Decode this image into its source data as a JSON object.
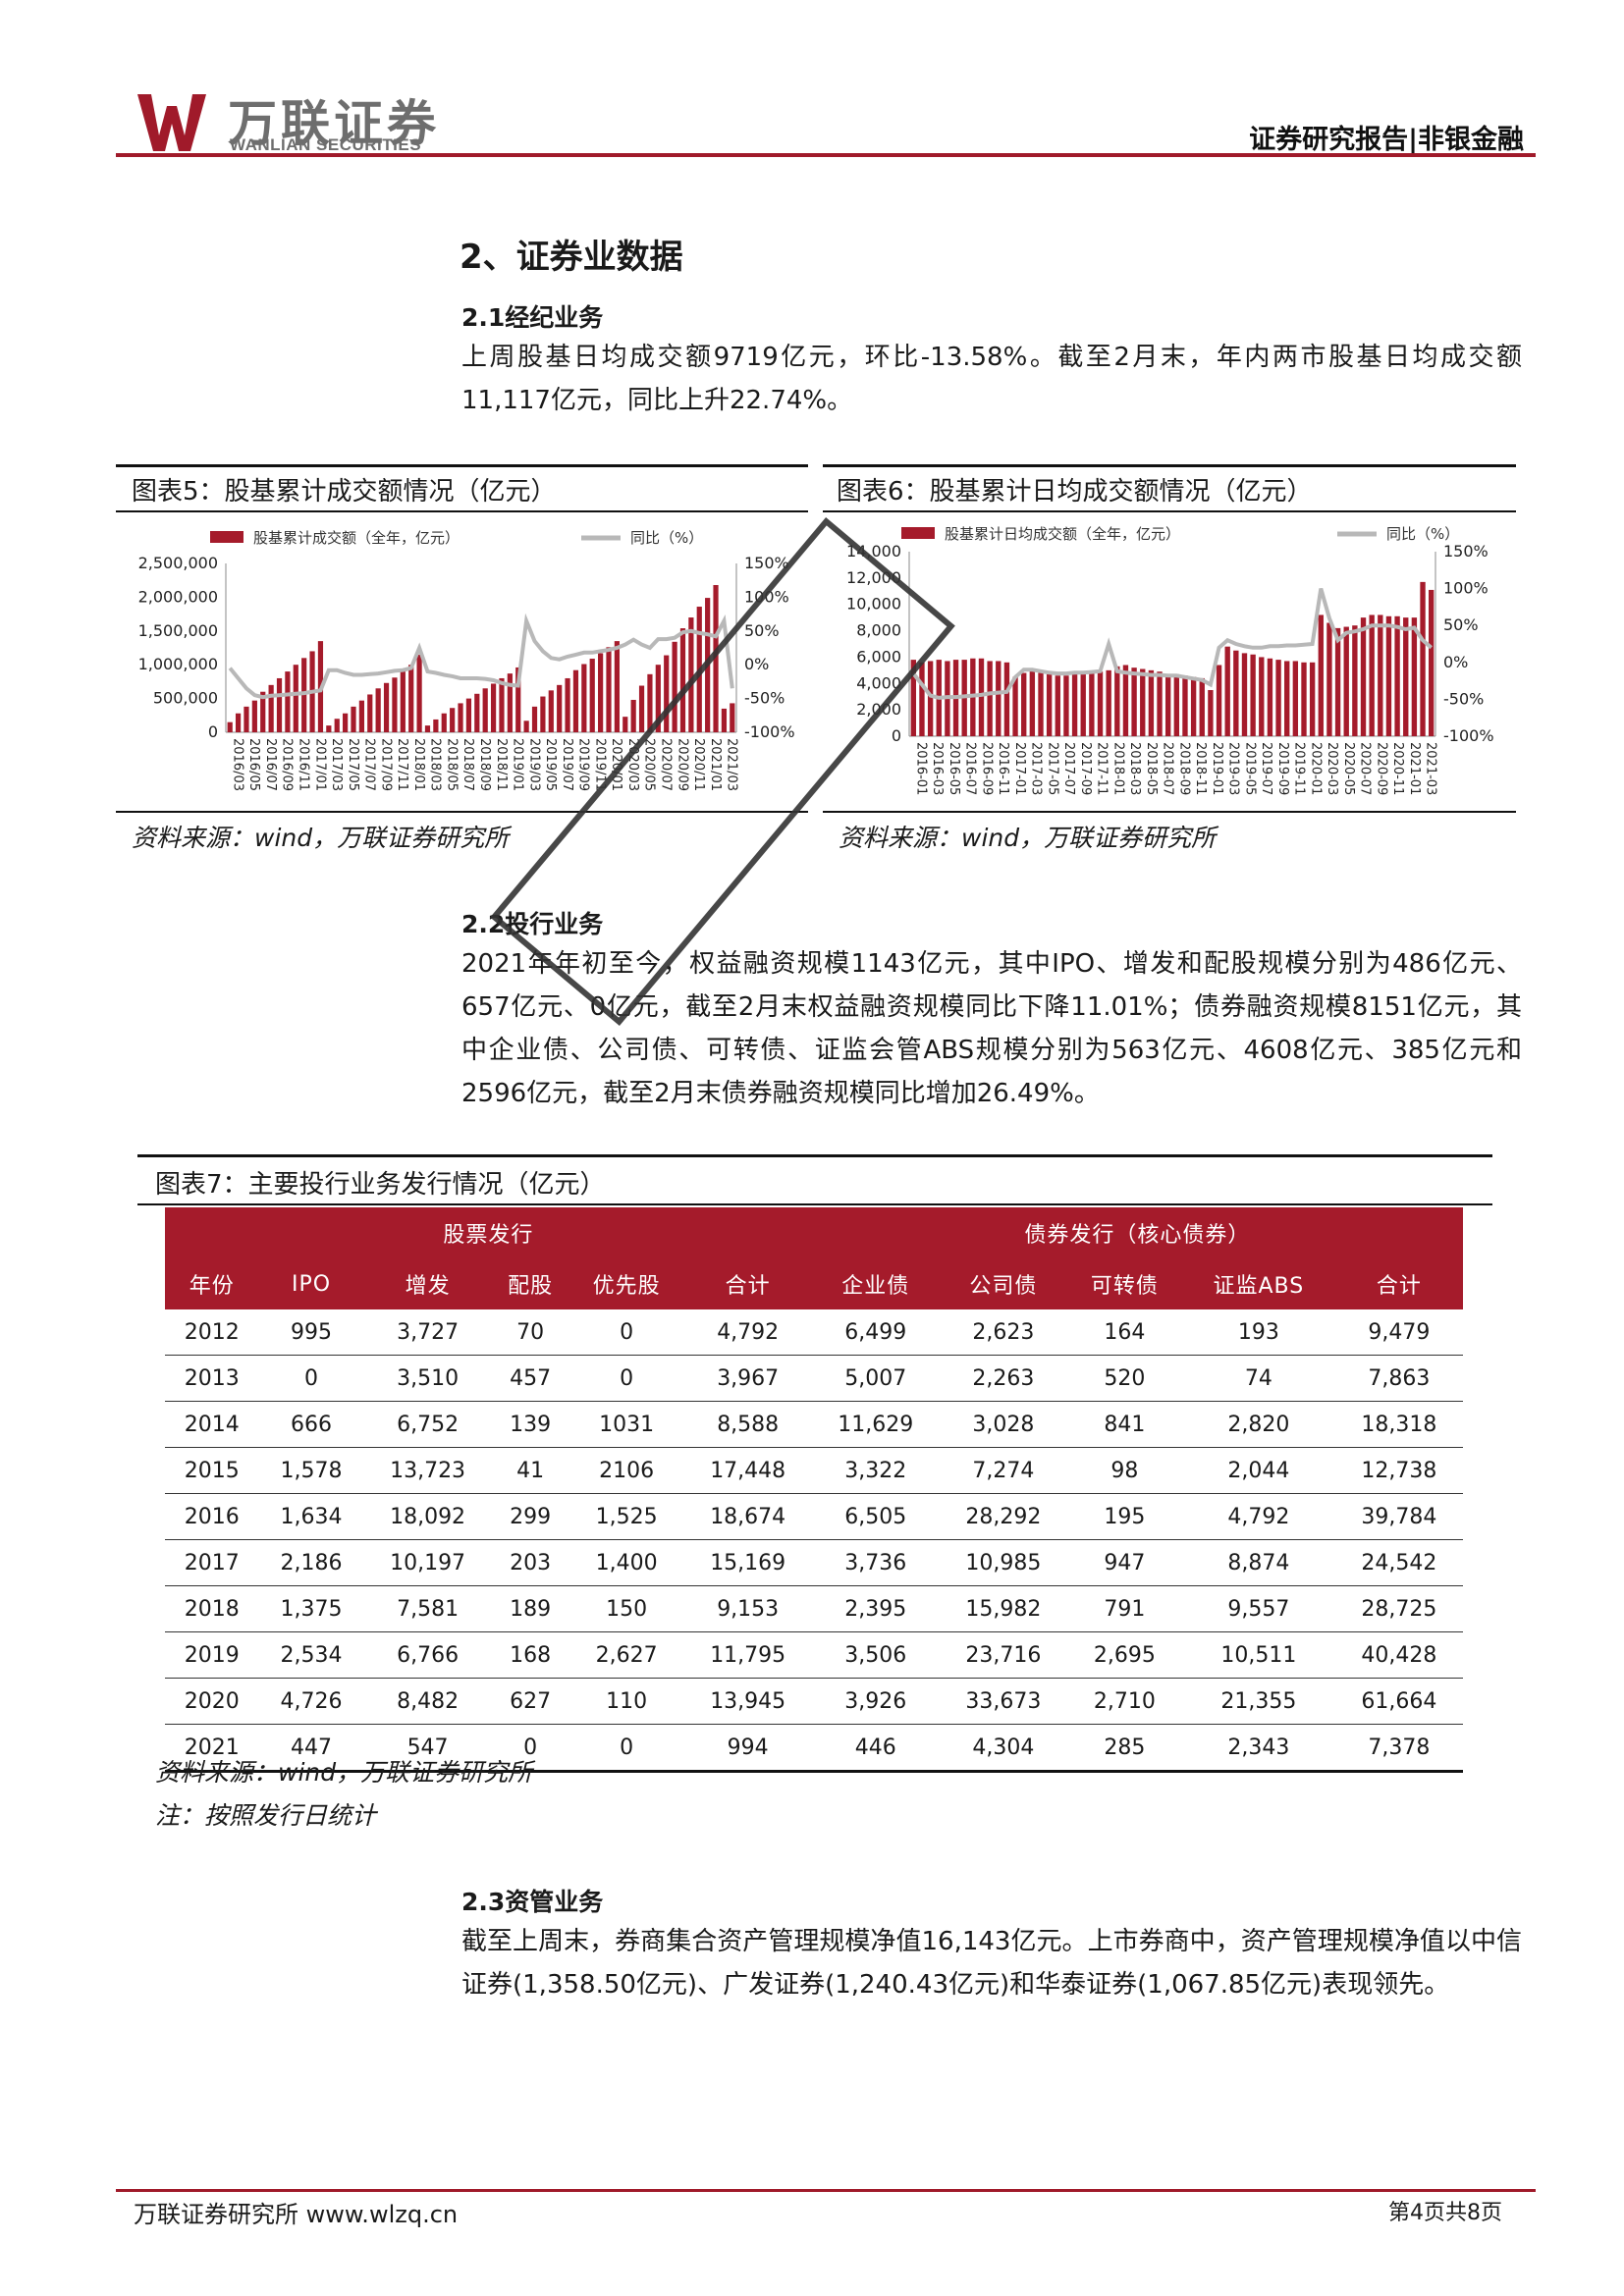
{
  "header": {
    "logo_cn": "万联证券",
    "logo_en": "WANLIAN SECURITIES",
    "report_type": "证券研究报告|非银金融"
  },
  "section": {
    "title": "2、证券业数据"
  },
  "brokerage": {
    "heading": "2.1经纪业务",
    "text": "上周股基日均成交额9719亿元，环比-13.58%。截至2月末，年内两市股基日均成交额11,117亿元，同比上升22.74%。"
  },
  "figure5": {
    "title": "图表5：股基累计成交额情况（亿元）",
    "source": "资料来源：wind，万联证券研究所",
    "chart_data": {
      "type": "bar",
      "title": "",
      "legend": [
        "股基累计成交额（全年，亿元）",
        "同比（%）"
      ],
      "left_ticks": [
        "2,500,000",
        "2,000,000",
        "1,500,000",
        "1,000,000",
        "500,000",
        "0"
      ],
      "right_ticks": [
        "150%",
        "100%",
        "50%",
        "0%",
        "-50%",
        "-100%"
      ],
      "x_ticks": [
        "2016/03",
        "2016/05",
        "2016/07",
        "2016/09",
        "2016/11",
        "2017/01",
        "2017/03",
        "2017/05",
        "2017/07",
        "2017/09",
        "2017/11",
        "2018/01",
        "2018/03",
        "2018/05",
        "2018/07",
        "2018/09",
        "2018/11",
        "2019/01",
        "2019/03",
        "2019/05",
        "2019/07",
        "2019/09",
        "2019/11",
        "2020/01",
        "2020/03",
        "2020/05",
        "2020/07",
        "2020/09",
        "2020/11",
        "2021/01",
        "2021/03"
      ],
      "ylim": [
        0,
        2500000
      ],
      "y2lim": [
        -100,
        150
      ],
      "series": [
        {
          "name": "股基累计成交额（全年，亿元）",
          "values": [
            150000,
            280000,
            380000,
            470000,
            600000,
            700000,
            800000,
            900000,
            1000000,
            1100000,
            1200000,
            1350000,
            100000,
            200000,
            280000,
            380000,
            470000,
            560000,
            650000,
            730000,
            810000,
            900000,
            1000000,
            1150000,
            100000,
            190000,
            280000,
            360000,
            430000,
            500000,
            570000,
            650000,
            720000,
            800000,
            870000,
            960000,
            170000,
            380000,
            530000,
            620000,
            700000,
            800000,
            920000,
            1010000,
            1090000,
            1170000,
            1260000,
            1350000,
            230000,
            480000,
            690000,
            860000,
            1000000,
            1140000,
            1340000,
            1540000,
            1700000,
            1860000,
            1990000,
            2180000,
            350000,
            430000
          ]
        },
        {
          "name": "同比（%）",
          "values": [
            -5,
            -20,
            -35,
            -45,
            -48,
            -46,
            -45,
            -44,
            -43,
            -42,
            -40,
            -38,
            -8,
            -8,
            -12,
            -15,
            -15,
            -14,
            -13,
            -11,
            -9,
            -8,
            -5,
            25,
            -10,
            -12,
            -15,
            -17,
            -20,
            -20,
            -20,
            -21,
            -23,
            -27,
            -30,
            -31,
            65,
            35,
            20,
            10,
            8,
            12,
            15,
            18,
            18,
            20,
            22,
            25,
            30,
            37,
            30,
            25,
            38,
            38,
            40,
            48,
            50,
            47,
            45,
            42,
            65,
            -35
          ]
        }
      ]
    }
  },
  "figure6": {
    "title": "图表6：股基累计日均成交额情况（亿元）",
    "source": "资料来源：wind，万联证券研究所",
    "chart_data": {
      "type": "bar",
      "title": "",
      "legend": [
        "股基累计日均成交额（全年，亿元）",
        "同比（%）"
      ],
      "left_ticks": [
        "14,000",
        "12,000",
        "10,000",
        "8,000",
        "6,000",
        "4,000",
        "2,000",
        "0"
      ],
      "right_ticks": [
        "150%",
        "100%",
        "50%",
        "0%",
        "-50%",
        "-100%"
      ],
      "x_ticks": [
        "2016-01",
        "2016-03",
        "2016-05",
        "2016-07",
        "2016-09",
        "2016-11",
        "2017-01",
        "2017-03",
        "2017-05",
        "2017-07",
        "2017-09",
        "2017-11",
        "2018-01",
        "2018-03",
        "2018-05",
        "2018-07",
        "2018-09",
        "2018-11",
        "2019-01",
        "2019-03",
        "2019-05",
        "2019-07",
        "2019-09",
        "2019-11",
        "2020-01",
        "2020-03",
        "2020-05",
        "2020-07",
        "2020-09",
        "2020-11",
        "2021-01",
        "2021-03"
      ],
      "ylim": [
        0,
        14000
      ],
      "y2lim": [
        -100,
        150
      ],
      "series": [
        {
          "name": "股基累计日均成交额（全年，亿元）",
          "values": [
            5800,
            5600,
            5700,
            5800,
            5700,
            5800,
            5800,
            5900,
            5900,
            5700,
            5700,
            5600,
            4500,
            4800,
            5000,
            4800,
            4700,
            4600,
            4600,
            4700,
            4800,
            4900,
            4900,
            5000,
            5300,
            5400,
            5200,
            5100,
            5000,
            4900,
            4700,
            4700,
            4600,
            4500,
            4400,
            3500,
            5400,
            6800,
            6500,
            6300,
            6200,
            6000,
            5900,
            5800,
            5700,
            5700,
            5600,
            5600,
            9200,
            8600,
            8200,
            8300,
            8400,
            9000,
            9200,
            9200,
            9100,
            9100,
            9000,
            9000,
            11700,
            11100
          ]
        },
        {
          "name": "同比（%）",
          "values": [
            -15,
            -30,
            -45,
            -48,
            -47,
            -47,
            -46,
            -45,
            -44,
            -42,
            -41,
            -40,
            -20,
            -10,
            -10,
            -12,
            -14,
            -15,
            -15,
            -14,
            -14,
            -13,
            -12,
            25,
            -12,
            -14,
            -15,
            -16,
            -17,
            -17,
            -18,
            -18,
            -20,
            -22,
            -24,
            -30,
            20,
            30,
            25,
            22,
            20,
            20,
            22,
            22,
            23,
            23,
            24,
            25,
            100,
            60,
            30,
            40,
            42,
            45,
            50,
            50,
            50,
            48,
            45,
            47,
            30,
            20
          ]
        }
      ]
    }
  },
  "ibanking": {
    "heading": "2.2投行业务",
    "text": "2021年年初至今，权益融资规模1143亿元，其中IPO、增发和配股规模分别为486亿元、657亿元、0亿元，截至2月末权益融资规模同比下降11.01%；债券融资规模8151亿元，其中企业债、公司债、可转债、证监会管ABS规模分别为563亿元、4608亿元、385亿元和2596亿元，截至2月末债券融资规模同比增加26.49%。"
  },
  "figure7": {
    "title": "图表7：主要投行业务发行情况（亿元）",
    "group_headers": [
      "股票发行",
      "债券发行（核心债券）"
    ],
    "columns": [
      "年份",
      "IPO",
      "增发",
      "配股",
      "优先股",
      "合计",
      "企业债",
      "公司债",
      "可转债",
      "证监ABS",
      "合计"
    ],
    "rows": [
      [
        "2012",
        "995",
        "3,727",
        "70",
        "0",
        "4,792",
        "6,499",
        "2,623",
        "164",
        "193",
        "9,479"
      ],
      [
        "2013",
        "0",
        "3,510",
        "457",
        "0",
        "3,967",
        "5,007",
        "2,263",
        "520",
        "74",
        "7,863"
      ],
      [
        "2014",
        "666",
        "6,752",
        "139",
        "1031",
        "8,588",
        "11,629",
        "3,028",
        "841",
        "2,820",
        "18,318"
      ],
      [
        "2015",
        "1,578",
        "13,723",
        "41",
        "2106",
        "17,448",
        "3,322",
        "7,274",
        "98",
        "2,044",
        "12,738"
      ],
      [
        "2016",
        "1,634",
        "18,092",
        "299",
        "1,525",
        "18,674",
        "6,505",
        "28,292",
        "195",
        "4,792",
        "39,784"
      ],
      [
        "2017",
        "2,186",
        "10,197",
        "203",
        "1,400",
        "15,169",
        "3,736",
        "10,985",
        "947",
        "8,874",
        "24,542"
      ],
      [
        "2018",
        "1,375",
        "7,581",
        "189",
        "150",
        "9,153",
        "2,395",
        "15,982",
        "791",
        "9,557",
        "28,725"
      ],
      [
        "2019",
        "2,534",
        "6,766",
        "168",
        "2,627",
        "11,795",
        "3,506",
        "23,716",
        "2,695",
        "10,511",
        "40,428"
      ],
      [
        "2020",
        "4,726",
        "8,482",
        "627",
        "110",
        "13,945",
        "3,926",
        "33,673",
        "2,710",
        "21,355",
        "61,664"
      ],
      [
        "2021",
        "447",
        "547",
        "0",
        "0",
        "994",
        "446",
        "4,304",
        "285",
        "2,343",
        "7,378"
      ]
    ],
    "source": "资料来源：wind，万联证券研究所",
    "note": "注：按照发行日统计"
  },
  "asset_mgmt": {
    "heading": "2.3资管业务",
    "text": "截至上周末，券商集合资产管理规模净值16,143亿元。上市券商中，资产管理规模净值以中信证券(1,358.50亿元)、广发证券(1,240.43亿元)和华泰证券(1,067.85亿元)表现领先。"
  },
  "footer": {
    "left": "万联证券研究所 www.wlzq.cn",
    "right": "第4页共8页"
  },
  "colors": {
    "brand_red": "#a01a2a",
    "bar_red": "#a51b2b",
    "line_gray": "#b8b8b8"
  }
}
